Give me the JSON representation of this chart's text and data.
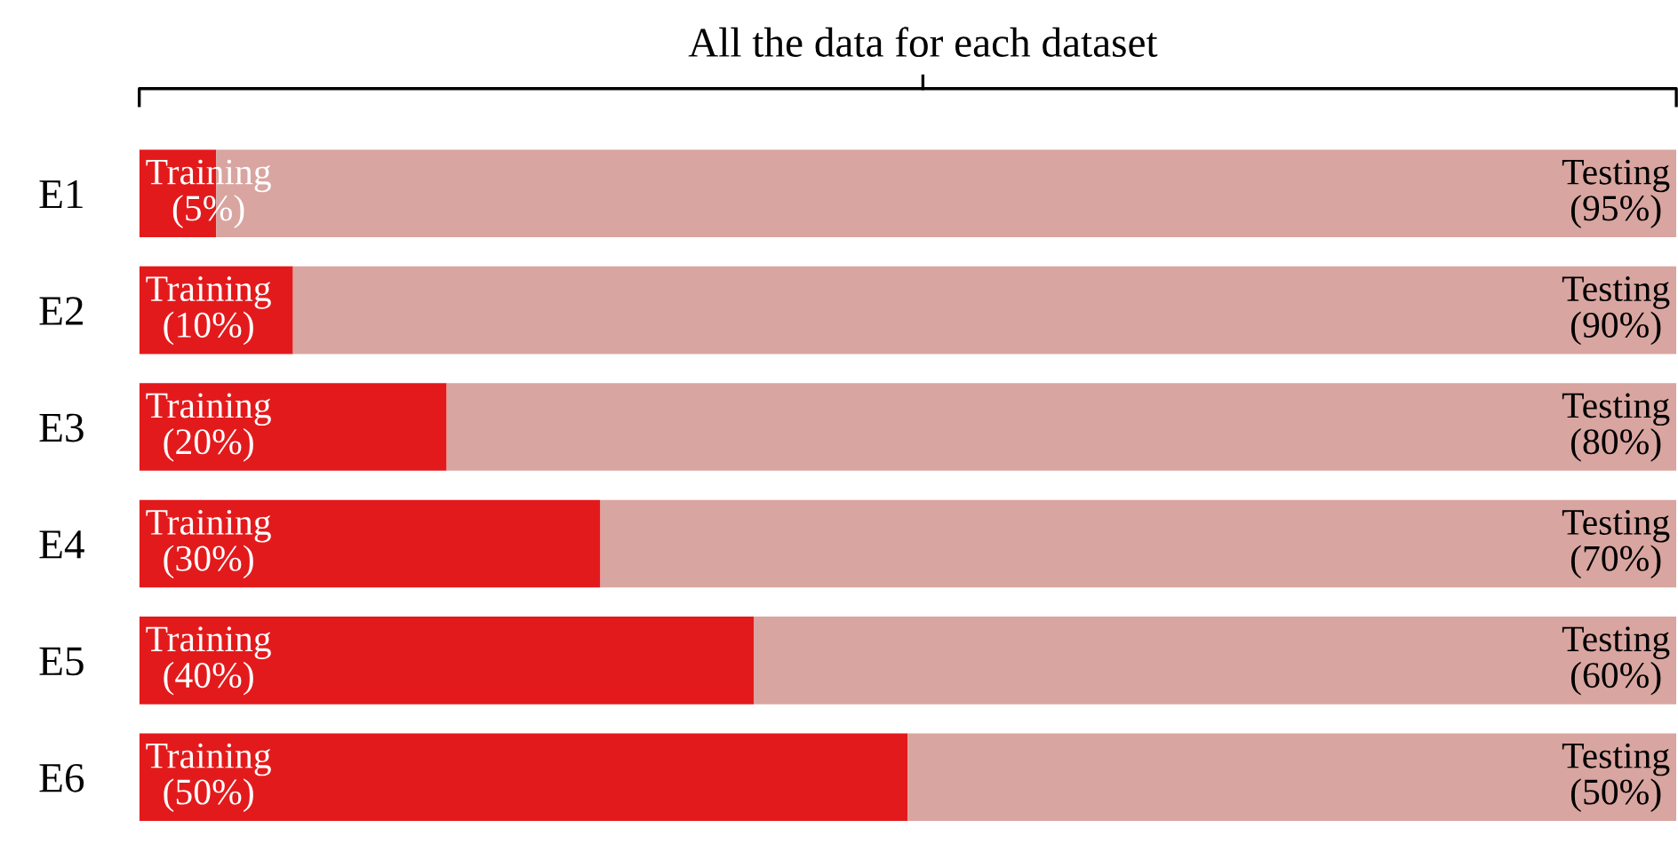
{
  "chart_data": {
    "type": "bar",
    "orientation": "horizontal",
    "stacked": true,
    "title": "All the data for each dataset",
    "categories": [
      "E1",
      "E2",
      "E3",
      "E4",
      "E5",
      "E6"
    ],
    "xlim": [
      0,
      100
    ],
    "tick_labels": "y",
    "grid": false,
    "legend": false,
    "series": [
      {
        "name": "Training",
        "color": "#e31a1c",
        "values": [
          5,
          10,
          20,
          30,
          40,
          50
        ],
        "value_labels": [
          "(5%)",
          "(10%)",
          "(20%)",
          "(30%)",
          "(40%)",
          "(50%)"
        ]
      },
      {
        "name": "Testing",
        "color": "#d9a5a0",
        "values": [
          95,
          90,
          80,
          70,
          60,
          50
        ],
        "value_labels": [
          "(95%)",
          "(90%)",
          "(80%)",
          "(70%)",
          "(60%)",
          "(50%)"
        ]
      }
    ]
  }
}
